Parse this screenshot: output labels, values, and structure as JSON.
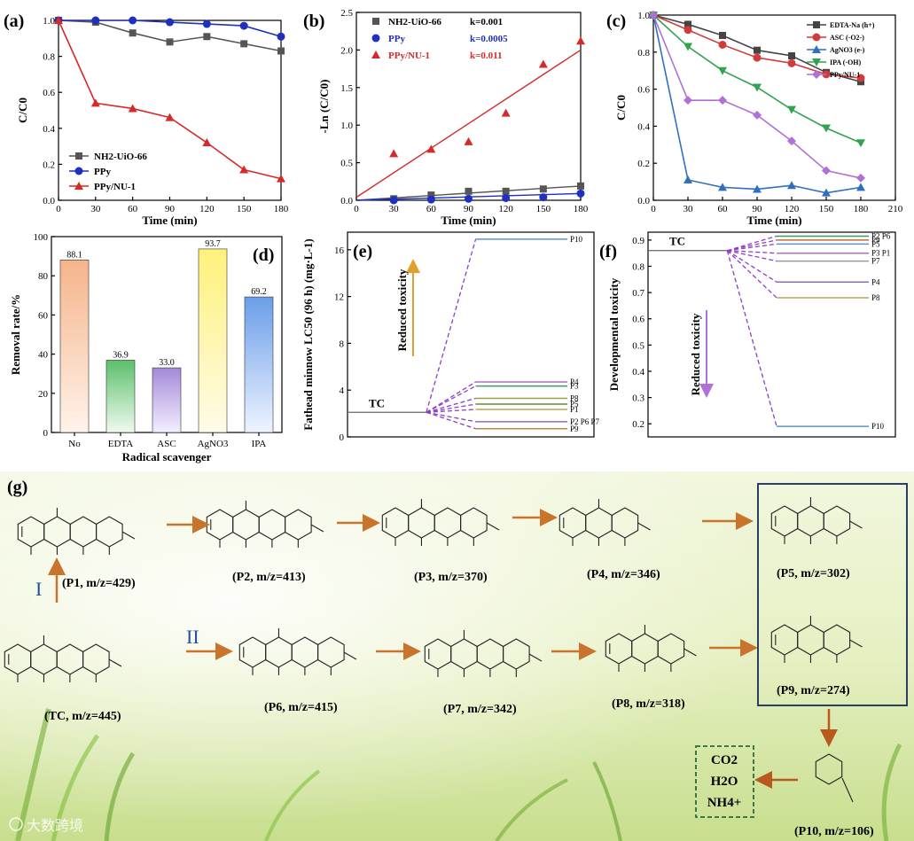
{
  "chart_data": [
    {
      "panel": "(a)",
      "type": "line",
      "xlabel": "Time (min)",
      "ylabel": "C/C0",
      "xlim": [
        0,
        180
      ],
      "ylim": [
        0,
        1.0
      ],
      "xticks": [
        "0",
        "30",
        "60",
        "90",
        "120",
        "150",
        "180"
      ],
      "yticks": [
        "0.0",
        "0.2",
        "0.4",
        "0.6",
        "0.8",
        "1.0"
      ],
      "x": [
        0,
        30,
        60,
        90,
        120,
        150,
        180
      ],
      "series": [
        {
          "name": "NH2-UiO-66",
          "values": [
            1.0,
            0.99,
            0.93,
            0.88,
            0.91,
            0.87,
            0.83
          ],
          "color": "#555555",
          "marker": "square"
        },
        {
          "name": "PPy",
          "values": [
            1.0,
            1.0,
            1.0,
            0.99,
            0.98,
            0.97,
            0.91
          ],
          "color": "#1f2fbf",
          "marker": "circle"
        },
        {
          "name": "PPy/NU-1",
          "values": [
            1.0,
            0.54,
            0.51,
            0.46,
            0.32,
            0.17,
            0.12
          ],
          "color": "#d42a2a",
          "marker": "triangle"
        }
      ],
      "legend_placement": "bottom-left"
    },
    {
      "panel": "(b)",
      "type": "scatter",
      "xlabel": "Time (min)",
      "ylabel": "-Ln (C/C0)",
      "xlim": [
        0,
        180
      ],
      "ylim": [
        0,
        2.5
      ],
      "xticks": [
        "0",
        "30",
        "60",
        "90",
        "120",
        "150",
        "180"
      ],
      "yticks": [
        "0.0",
        "0.5",
        "1.0",
        "1.5",
        "2.0",
        "2.5"
      ],
      "x": [
        30,
        60,
        90,
        120,
        150,
        180
      ],
      "series": [
        {
          "name": "NH2-UiO-66",
          "k": "k=0.001",
          "values": [
            0.02,
            0.07,
            0.12,
            0.12,
            0.15,
            0.19
          ],
          "fit": [
            0.0,
            0.19
          ],
          "color": "#555555",
          "marker": "square"
        },
        {
          "name": "PPy",
          "k": "k=0.0005",
          "values": [
            0.0,
            0.01,
            0.02,
            0.03,
            0.04,
            0.09
          ],
          "fit": [
            0.0,
            0.09
          ],
          "color": "#1f2fbf",
          "marker": "circle"
        },
        {
          "name": "PPy/NU-1",
          "k": "k=0.011",
          "values": [
            0.62,
            0.68,
            0.78,
            1.16,
            1.81,
            2.12
          ],
          "fit": [
            0.04,
            2.0
          ],
          "color": "#d42a2a",
          "marker": "triangle"
        }
      ],
      "legend_placement": "top-left"
    },
    {
      "panel": "(c)",
      "type": "line",
      "xlabel": "Time (min)",
      "ylabel": "C/C0",
      "xlim": [
        0,
        210
      ],
      "ylim": [
        0,
        1.0
      ],
      "xticks": [
        "0",
        "30",
        "60",
        "90",
        "120",
        "150",
        "180",
        "210"
      ],
      "yticks": [
        "0.0",
        "0.2",
        "0.4",
        "0.6",
        "0.8",
        "1.0"
      ],
      "x": [
        0,
        30,
        60,
        90,
        120,
        150,
        180
      ],
      "series": [
        {
          "name": "EDTA-Na (h+)",
          "values": [
            1.0,
            0.95,
            0.89,
            0.81,
            0.78,
            0.69,
            0.64
          ],
          "color": "#444444",
          "marker": "square"
        },
        {
          "name": "ASC (·O2-)",
          "values": [
            1.0,
            0.92,
            0.84,
            0.77,
            0.74,
            0.68,
            0.66
          ],
          "color": "#d03c3c",
          "marker": "circle"
        },
        {
          "name": "AgNO3 (e-)",
          "values": [
            1.0,
            0.11,
            0.07,
            0.06,
            0.08,
            0.04,
            0.07
          ],
          "color": "#2f6fc0",
          "marker": "triangle"
        },
        {
          "name": "IPA (·OH)",
          "values": [
            1.0,
            0.83,
            0.7,
            0.61,
            0.49,
            0.39,
            0.31
          ],
          "color": "#2fa34f",
          "marker": "triangle-down"
        },
        {
          "name": "PPy/NU-1",
          "values": [
            1.0,
            0.54,
            0.54,
            0.46,
            0.32,
            0.16,
            0.12
          ],
          "color": "#b070d8",
          "marker": "diamond"
        }
      ],
      "legend_placement": "top-right"
    },
    {
      "panel": "(d)",
      "type": "bar",
      "xlabel": "Radical scavenger",
      "ylabel": "Removal rate/%",
      "ylim": [
        0,
        100
      ],
      "yticks": [
        "0",
        "20",
        "40",
        "60",
        "80",
        "100"
      ],
      "categories": [
        "No",
        "EDTA",
        "ASC",
        "AgNO3",
        "IPA"
      ],
      "values": [
        88.1,
        36.9,
        33.0,
        93.7,
        69.2
      ],
      "value_labels": [
        "88.1",
        "36.9",
        "33.0",
        "93.7",
        "69.2"
      ],
      "colors": [
        "#f5b48a",
        "#5cc06a",
        "#a48ad8",
        "#fff17a",
        "#6a9ee8"
      ]
    },
    {
      "panel": "(e)",
      "type": "energy-level",
      "ylabel": "Fathead minnow LC50 (96 h) (mg·L-1)",
      "ylim": [
        0,
        17.5
      ],
      "yticks": [
        "0",
        "4",
        "8",
        "12",
        "16"
      ],
      "annotation": "Reduced toxicity",
      "reference": {
        "name": "TC",
        "value": 2.1
      },
      "levels": [
        {
          "name": "P10",
          "value": 16.9,
          "color": "#5b93c9"
        },
        {
          "name": "P4",
          "value": 4.7,
          "color": "#b06fc0"
        },
        {
          "name": "P3",
          "value": 4.35,
          "color": "#3f9a56"
        },
        {
          "name": "P8",
          "value": 3.3,
          "color": "#9aa23a"
        },
        {
          "name": "P5",
          "value": 2.8,
          "color": "#5d8f3c"
        },
        {
          "name": "P1",
          "value": 2.35,
          "color": "#b5a84a"
        },
        {
          "name": "P2 P6 P7",
          "value": 1.3,
          "color": "#8b6fb5"
        },
        {
          "name": "P9",
          "value": 0.7,
          "color": "#c88a3a"
        }
      ]
    },
    {
      "panel": "(f)",
      "type": "energy-level",
      "ylabel": "Developmental toxicity",
      "ylim": [
        0.15,
        0.93
      ],
      "yticks": [
        "0.2",
        "0.3",
        "0.4",
        "0.5",
        "0.6",
        "0.7",
        "0.8",
        "0.9"
      ],
      "annotation": "Reduced toxicity",
      "reference": {
        "name": "TC",
        "value": 0.86
      },
      "levels": [
        {
          "name": "P2 P6",
          "value": 0.915,
          "color": "#3c9a5a"
        },
        {
          "name": "P9",
          "value": 0.9,
          "color": "#c06a3a"
        },
        {
          "name": "P5",
          "value": 0.885,
          "color": "#5b93c9"
        },
        {
          "name": "P3 P1",
          "value": 0.85,
          "color": "#b06fc0"
        },
        {
          "name": "P7",
          "value": 0.82,
          "color": "#999999"
        },
        {
          "name": "P4",
          "value": 0.74,
          "color": "#8b6fb5"
        },
        {
          "name": "P8",
          "value": 0.68,
          "color": "#b5a84a"
        },
        {
          "name": "P10",
          "value": 0.19,
          "color": "#5b93c9"
        }
      ]
    }
  ],
  "panel_g": {
    "panel_label": "(g)",
    "route_I": "I",
    "route_II": "II",
    "products": [
      {
        "id": "p1",
        "label": "(P1, m/z=429)"
      },
      {
        "id": "p2",
        "label": "(P2, m/z=413)"
      },
      {
        "id": "p3",
        "label": "(P3, m/z=370)"
      },
      {
        "id": "p4",
        "label": "(P4, m/z=346)"
      },
      {
        "id": "p5",
        "label": "(P5, m/z=302)"
      },
      {
        "id": "tc",
        "label": "(TC, m/z=445)"
      },
      {
        "id": "p6",
        "label": "(P6, m/z=415)"
      },
      {
        "id": "p7",
        "label": "(P7, m/z=342)"
      },
      {
        "id": "p8",
        "label": "(P8, m/z=318)"
      },
      {
        "id": "p9",
        "label": "(P9, m/z=274)"
      },
      {
        "id": "p10",
        "label": "(P10, m/z=106)"
      }
    ],
    "final_products": [
      "CO2",
      "H2O",
      "NH4+"
    ],
    "watermark": "大数跨境"
  }
}
